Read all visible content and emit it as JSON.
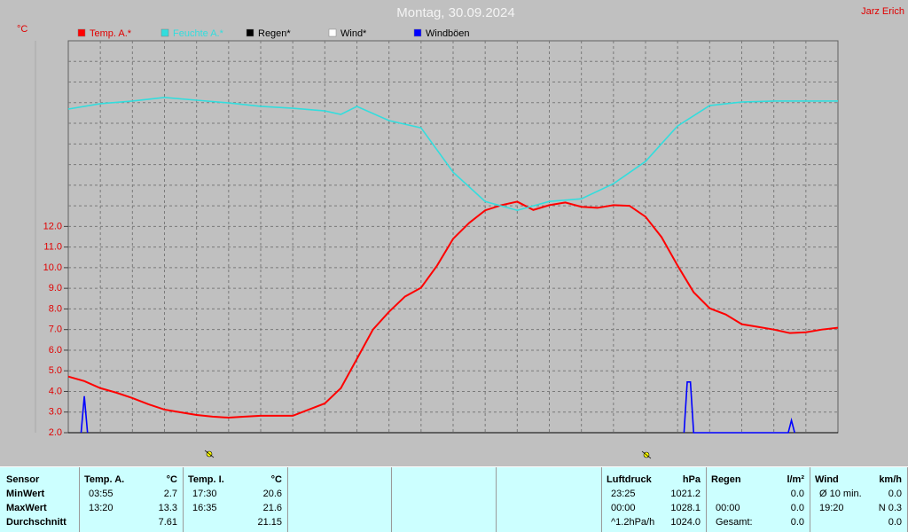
{
  "chart_data": {
    "type": "line",
    "title": "Montag, 30.09.2024",
    "author": "Jarz Erich",
    "y_label": "°C",
    "xlim": [
      0,
      24
    ],
    "xgrid": [
      1,
      2,
      3,
      4,
      5,
      6,
      7,
      8,
      9,
      10,
      11,
      12,
      13,
      14,
      15,
      16,
      17,
      18,
      19,
      20,
      21,
      22,
      23
    ],
    "ylim": [
      2,
      21
    ],
    "yticks": [
      {
        "value": 2,
        "label": "2.0"
      },
      {
        "value": 3,
        "label": "3.0"
      },
      {
        "value": 4,
        "label": "4.0"
      },
      {
        "value": 5,
        "label": "5.0"
      },
      {
        "value": 6,
        "label": "6.0"
      },
      {
        "value": 7,
        "label": "7.0"
      },
      {
        "value": 8,
        "label": "8.0"
      },
      {
        "value": 9,
        "label": "9.0"
      },
      {
        "value": 10,
        "label": "10.0"
      },
      {
        "value": 11,
        "label": "11.0"
      },
      {
        "value": 12,
        "label": "12.0"
      }
    ],
    "ygrid": [
      3,
      4,
      5,
      6,
      7,
      8,
      9,
      10,
      11,
      12,
      13,
      14,
      15,
      16,
      17,
      18,
      19,
      20
    ],
    "grid": true,
    "series": [
      {
        "name": "Temp. A.*",
        "color": "#ff0000",
        "x": [
          0,
          0.5,
          1,
          1.5,
          2,
          2.5,
          3,
          3.5,
          4,
          4.5,
          5,
          5.5,
          6,
          6.5,
          7,
          7.5,
          8,
          8.5,
          9,
          9.5,
          10,
          10.5,
          11,
          11.5,
          12,
          12.5,
          13,
          13.5,
          14,
          14.5,
          15,
          15.5,
          16,
          16.5,
          17,
          17.5,
          18,
          18.5,
          19,
          19.5,
          20,
          20.5,
          21,
          21.5,
          22,
          22.5,
          23,
          23.5,
          24
        ],
        "values": [
          4.72,
          4.5,
          4.16,
          3.94,
          3.68,
          3.38,
          3.12,
          2.99,
          2.86,
          2.78,
          2.73,
          2.78,
          2.82,
          2.82,
          2.82,
          3.12,
          3.42,
          4.16,
          5.58,
          7.0,
          7.86,
          8.6,
          9.03,
          10.1,
          11.4,
          12.17,
          12.78,
          13.03,
          13.2,
          12.8,
          13.03,
          13.16,
          12.95,
          12.9,
          13.03,
          13.0,
          12.47,
          11.48,
          10.1,
          8.81,
          8.03,
          7.73,
          7.26,
          7.13,
          7.0,
          6.83,
          6.87,
          7.0,
          7.09
        ]
      },
      {
        "name": "Feuchte A.*",
        "color": "#33dddd",
        "x": [
          0,
          1,
          2,
          3,
          4,
          5,
          6,
          7,
          8,
          8.5,
          9,
          10,
          11,
          12,
          13,
          14,
          15,
          16,
          17,
          18,
          19,
          20,
          21,
          22,
          23,
          24
        ],
        "values": [
          17.69,
          17.95,
          18.08,
          18.25,
          18.12,
          17.99,
          17.82,
          17.73,
          17.6,
          17.43,
          17.82,
          17.13,
          16.78,
          14.63,
          13.21,
          12.78,
          13.21,
          13.34,
          14.07,
          15.15,
          16.87,
          17.86,
          18.03,
          18.08,
          18.08,
          18.08
        ]
      },
      {
        "name": "Regen*",
        "color": "#000000",
        "x": [],
        "values": []
      },
      {
        "name": "Wind*",
        "color": "#ffffff",
        "x": [],
        "values": []
      },
      {
        "name": "Windböen",
        "color": "#0000ff",
        "x": [
          0.4,
          0.5,
          0.6,
          0.7,
          19.2,
          19.3,
          19.4,
          19.5,
          22.45,
          22.55,
          22.65
        ],
        "values": [
          2,
          3.77,
          2,
          null,
          2,
          4.46,
          4.46,
          2,
          2,
          2.6,
          2
        ]
      }
    ]
  },
  "table": {
    "columns": [
      {
        "header": [
          "Sensor",
          null
        ],
        "rows": [
          [
            "MinWert",
            null
          ],
          [
            "MaxWert",
            null
          ],
          [
            "Durchschnitt",
            null
          ]
        ]
      },
      {
        "header": [
          "Temp. A.",
          "°C"
        ],
        "rows": [
          [
            "03:55",
            "2.7"
          ],
          [
            "13:20",
            "13.3"
          ],
          [
            null,
            "7.61"
          ]
        ]
      },
      {
        "header": [
          "Temp. I.",
          "°C"
        ],
        "rows": [
          [
            "17:30",
            "20.6"
          ],
          [
            "16:35",
            "21.6"
          ],
          [
            null,
            "21.15"
          ]
        ]
      },
      {
        "header": [
          null,
          null
        ],
        "rows": [
          [
            null,
            null
          ],
          [
            null,
            null
          ],
          [
            null,
            null
          ]
        ]
      },
      {
        "header": [
          null,
          null
        ],
        "rows": [
          [
            null,
            null
          ],
          [
            null,
            null
          ],
          [
            null,
            null
          ]
        ]
      },
      {
        "header": [
          null,
          null
        ],
        "rows": [
          [
            null,
            null
          ],
          [
            null,
            null
          ],
          [
            null,
            null
          ]
        ]
      },
      {
        "header": [
          "Luftdruck",
          "hPa"
        ],
        "rows": [
          [
            "23:25",
            "1021.2"
          ],
          [
            "00:00",
            "1028.1"
          ],
          [
            "^1.2hPa/h",
            "1024.0"
          ]
        ]
      },
      {
        "header": [
          "Regen",
          "l/m²"
        ],
        "rows": [
          [
            null,
            "0.0"
          ],
          [
            "00:00",
            "0.0"
          ],
          [
            "Gesamt:",
            "0.0"
          ]
        ]
      },
      {
        "header": [
          "Wind",
          "km/h"
        ],
        "rows": [
          [
            "Ø 10 min.",
            "0.0"
          ],
          [
            "19:20",
            "N 0.3"
          ],
          [
            null,
            "0.0"
          ]
        ]
      }
    ]
  }
}
